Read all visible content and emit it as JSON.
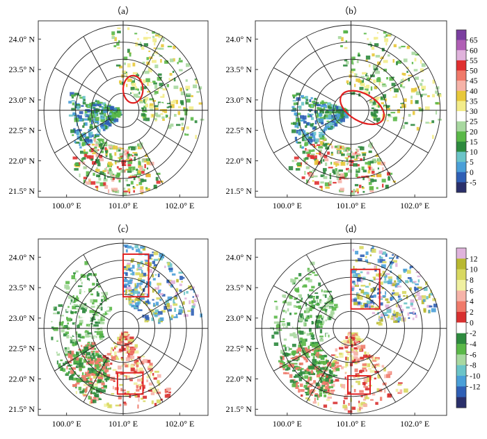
{
  "panels": [
    {
      "id": "a",
      "title": "（a）",
      "kind": "reflectivity",
      "boxes": [
        {
          "shape": "ellipse",
          "lon": [
            101.0,
            101.35
          ],
          "lat": [
            22.95,
            23.4
          ]
        }
      ]
    },
    {
      "id": "b",
      "title": "（b）",
      "kind": "reflectivity",
      "boxes": [
        {
          "shape": "ellipse",
          "lon": [
            100.8,
            101.55
          ],
          "lat": [
            22.65,
            23.1
          ]
        }
      ]
    },
    {
      "id": "c",
      "title": "（c）",
      "kind": "velocity",
      "boxes": [
        {
          "shape": "rect",
          "lon": [
            101.0,
            101.45
          ],
          "lat": [
            23.35,
            24.05
          ]
        },
        {
          "shape": "rect",
          "lon": [
            100.9,
            101.35
          ],
          "lat": [
            21.75,
            22.1
          ]
        }
      ]
    },
    {
      "id": "d",
      "title": "（d）",
      "kind": "velocity",
      "boxes": [
        {
          "shape": "rect",
          "lon": [
            101.0,
            101.45
          ],
          "lat": [
            23.15,
            23.8
          ]
        },
        {
          "shape": "rect",
          "lon": [
            100.95,
            101.3
          ],
          "lat": [
            21.75,
            22.05
          ]
        }
      ]
    }
  ],
  "chart_data": [
    {
      "type": "heatmap",
      "panels": [
        "（a）",
        "（b）"
      ],
      "x": {
        "ticks": [
          100.0,
          101.0,
          102.0
        ],
        "tick_labels": [
          "100.0° E",
          "101.0° E",
          "102.0° E"
        ],
        "range": [
          99.5,
          102.5
        ]
      },
      "y": {
        "ticks": [
          21.5,
          22.0,
          22.5,
          23.0,
          23.5,
          24.0
        ],
        "tick_labels": [
          "21.5° N",
          "22.0° N",
          "22.5° N",
          "23.0° N",
          "23.5° N",
          "24.0° N"
        ],
        "range": [
          21.4,
          24.3
        ]
      },
      "radar_center": {
        "lon": 101.0,
        "lat": 22.83
      },
      "range_rings_deg": [
        0.28,
        0.56,
        0.84,
        1.12,
        1.4
      ],
      "colorbar": {
        "labels": [
          "65",
          "60",
          "55",
          "50",
          "45",
          "40",
          "35",
          "30",
          "25",
          "20",
          "15",
          "10",
          "5",
          "0",
          "-5"
        ],
        "colors": [
          "#7b3fa0",
          "#b05fb5",
          "#e0b3dc",
          "#e03030",
          "#f07a6a",
          "#f6b3a8",
          "#e8c83a",
          "#f3ec8a",
          "#ffffff",
          "#a8d8a0",
          "#5ab848",
          "#2d8a3e",
          "#6bc4c8",
          "#4a9fd8",
          "#2f5fb5",
          "#2a2f6a"
        ]
      }
    },
    {
      "type": "heatmap",
      "panels": [
        "（c）",
        "（d）"
      ],
      "x": {
        "ticks": [
          100.0,
          101.0,
          102.0
        ],
        "tick_labels": [
          "100.0° E",
          "101.0° E",
          "102.0° E"
        ],
        "range": [
          99.5,
          102.5
        ]
      },
      "y": {
        "ticks": [
          21.5,
          22.0,
          22.5,
          23.0,
          23.5,
          24.0
        ],
        "tick_labels": [
          "21.5° N",
          "22.0° N",
          "22.5° N",
          "23.0° N",
          "23.5° N",
          "24.0° N"
        ],
        "range": [
          21.4,
          24.3
        ]
      },
      "radar_center": {
        "lon": 101.0,
        "lat": 22.83
      },
      "range_rings_deg": [
        0.28,
        0.56,
        0.84,
        1.12,
        1.4
      ],
      "colorbar": {
        "labels": [
          "12",
          "10",
          "8",
          "6",
          "4",
          "2",
          "0",
          "-2",
          "-4",
          "-6",
          "-8",
          "-10",
          "-12"
        ],
        "colors": [
          "#e0b3dc",
          "#b8b830",
          "#d8d860",
          "#f0f0a0",
          "#f6b3a8",
          "#f07a6a",
          "#d83030",
          "#ffffff",
          "#2d8a3e",
          "#5ab848",
          "#a8d8a0",
          "#6bc4c8",
          "#4a9fd8",
          "#2f5fb5",
          "#2a2f6a"
        ]
      }
    }
  ]
}
